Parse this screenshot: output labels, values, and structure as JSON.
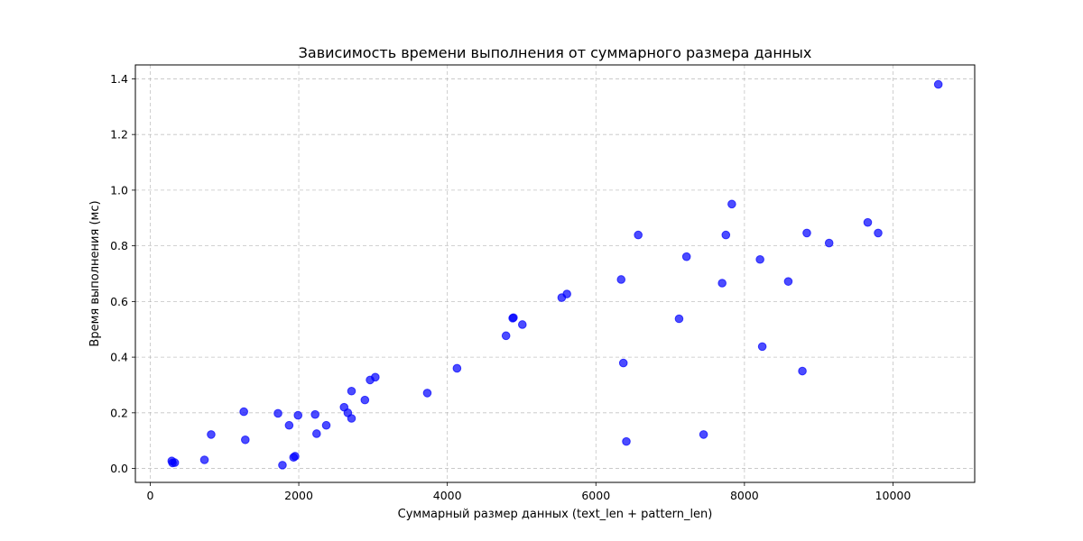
{
  "chart_data": {
    "type": "scatter",
    "title": "Зависимость времени выполнения от суммарного размера данных",
    "xlabel": "Суммарный размер данных (text_len + pattern_len)",
    "ylabel": "Время выполнения (мс)",
    "xlim": [
      -200,
      11100
    ],
    "ylim": [
      -0.05,
      1.45
    ],
    "x_ticks": [
      0,
      2000,
      4000,
      6000,
      8000,
      10000
    ],
    "y_ticks": [
      0.0,
      0.2,
      0.4,
      0.6,
      0.8,
      1.0,
      1.2,
      1.4
    ],
    "x_tick_labels": [
      "0",
      "2000",
      "4000",
      "6000",
      "8000",
      "10000"
    ],
    "y_tick_labels": [
      "0.0",
      "0.2",
      "0.4",
      "0.6",
      "0.8",
      "1.0",
      "1.2",
      "1.4"
    ],
    "grid": true,
    "point_color": "#0000ff",
    "points": [
      {
        "x": 290,
        "y": 0.027
      },
      {
        "x": 300,
        "y": 0.02
      },
      {
        "x": 330,
        "y": 0.021
      },
      {
        "x": 730,
        "y": 0.031
      },
      {
        "x": 820,
        "y": 0.122
      },
      {
        "x": 1260,
        "y": 0.204
      },
      {
        "x": 1280,
        "y": 0.103
      },
      {
        "x": 1720,
        "y": 0.198
      },
      {
        "x": 1780,
        "y": 0.012
      },
      {
        "x": 1870,
        "y": 0.155
      },
      {
        "x": 1930,
        "y": 0.04
      },
      {
        "x": 1950,
        "y": 0.044
      },
      {
        "x": 1990,
        "y": 0.191
      },
      {
        "x": 2220,
        "y": 0.194
      },
      {
        "x": 2240,
        "y": 0.125
      },
      {
        "x": 2370,
        "y": 0.155
      },
      {
        "x": 2610,
        "y": 0.22
      },
      {
        "x": 2660,
        "y": 0.2
      },
      {
        "x": 2710,
        "y": 0.18
      },
      {
        "x": 2710,
        "y": 0.278
      },
      {
        "x": 2890,
        "y": 0.246
      },
      {
        "x": 2960,
        "y": 0.318
      },
      {
        "x": 3030,
        "y": 0.328
      },
      {
        "x": 3730,
        "y": 0.271
      },
      {
        "x": 4130,
        "y": 0.36
      },
      {
        "x": 4790,
        "y": 0.477
      },
      {
        "x": 4880,
        "y": 0.54
      },
      {
        "x": 4890,
        "y": 0.542
      },
      {
        "x": 5010,
        "y": 0.517
      },
      {
        "x": 5540,
        "y": 0.614
      },
      {
        "x": 5610,
        "y": 0.627
      },
      {
        "x": 6340,
        "y": 0.679
      },
      {
        "x": 6370,
        "y": 0.379
      },
      {
        "x": 6410,
        "y": 0.097
      },
      {
        "x": 6570,
        "y": 0.839
      },
      {
        "x": 7120,
        "y": 0.538
      },
      {
        "x": 7220,
        "y": 0.761
      },
      {
        "x": 7450,
        "y": 0.122
      },
      {
        "x": 7700,
        "y": 0.666
      },
      {
        "x": 7750,
        "y": 0.839
      },
      {
        "x": 7830,
        "y": 0.95
      },
      {
        "x": 8210,
        "y": 0.751
      },
      {
        "x": 8240,
        "y": 0.438
      },
      {
        "x": 8590,
        "y": 0.672
      },
      {
        "x": 8780,
        "y": 0.35
      },
      {
        "x": 8840,
        "y": 0.846
      },
      {
        "x": 9140,
        "y": 0.81
      },
      {
        "x": 9660,
        "y": 0.884
      },
      {
        "x": 9800,
        "y": 0.846
      },
      {
        "x": 10610,
        "y": 1.38
      }
    ]
  }
}
